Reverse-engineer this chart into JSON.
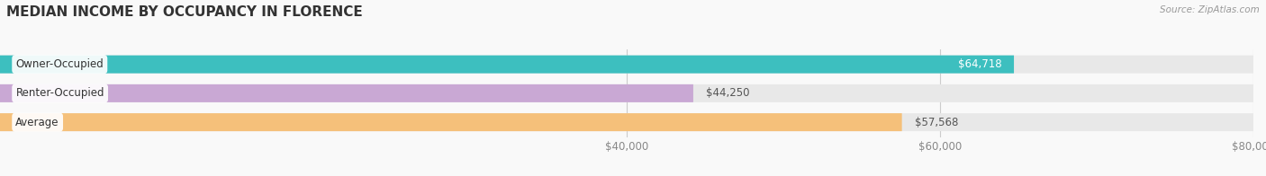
{
  "title": "MEDIAN INCOME BY OCCUPANCY IN FLORENCE",
  "source": "Source: ZipAtlas.com",
  "categories": [
    "Owner-Occupied",
    "Renter-Occupied",
    "Average"
  ],
  "values": [
    64718,
    44250,
    57568
  ],
  "bar_colors": [
    "#3dbfbf",
    "#c9a8d4",
    "#f5c07a"
  ],
  "bar_bg_color": "#e8e8e8",
  "value_labels": [
    "$64,718",
    "$44,250",
    "$57,568"
  ],
  "label_inside": [
    true,
    false,
    false
  ],
  "xlim": [
    0,
    80000
  ],
  "xticks": [
    40000,
    60000,
    80000
  ],
  "xticklabels": [
    "$40,000",
    "$60,000",
    "$80,000"
  ],
  "title_fontsize": 11,
  "tick_fontsize": 8.5,
  "bar_label_fontsize": 8.5,
  "category_fontsize": 8.5,
  "bg_color": "#f9f9f9",
  "bar_height": 0.62
}
